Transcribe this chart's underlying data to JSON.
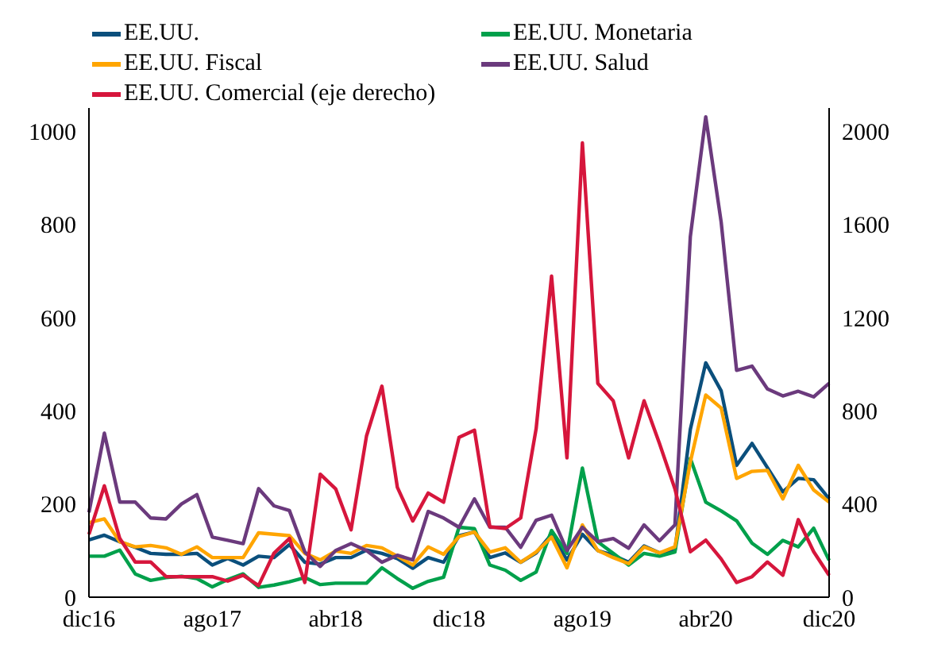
{
  "chart_data": {
    "type": "line",
    "categories": [
      "dic16",
      null,
      null,
      null,
      null,
      null,
      null,
      null,
      "ago17",
      null,
      null,
      null,
      null,
      null,
      null,
      null,
      "abr18",
      null,
      null,
      null,
      null,
      null,
      null,
      null,
      "dic18",
      null,
      null,
      null,
      null,
      null,
      null,
      null,
      "ago19",
      null,
      null,
      null,
      null,
      null,
      null,
      null,
      "abr20",
      null,
      null,
      null,
      null,
      null,
      null,
      null,
      "dic20"
    ],
    "series": [
      {
        "name": "EE.UU.",
        "color": "#0b4f7c",
        "values": [
          123,
          133,
          119,
          107,
          94,
          92,
          92,
          94,
          69,
          83,
          69,
          88,
          85,
          113,
          75,
          71,
          85,
          85,
          101,
          94,
          83,
          62,
          85,
          75,
          132,
          140,
          85,
          95,
          75,
          95,
          135,
          80,
          135,
          100,
          90,
          75,
          110,
          95,
          100,
          360,
          503,
          443,
          283,
          330,
          278,
          226,
          255,
          252,
          211
        ]
      },
      {
        "name": "EE.UU. Monetaria",
        "color": "#00a04b",
        "values": [
          88,
          88,
          101,
          50,
          36,
          42,
          45,
          40,
          22,
          38,
          50,
          21,
          26,
          33,
          42,
          27,
          30,
          30,
          30,
          63,
          40,
          19,
          34,
          43,
          150,
          147,
          69,
          58,
          36,
          54,
          143,
          94,
          277,
          119,
          94,
          69,
          94,
          88,
          97,
          298,
          204,
          185,
          164,
          116,
          92,
          122,
          108,
          148,
          79
        ]
      },
      {
        "name": "EE.UU. Fiscal",
        "color": "#ffa500",
        "values": [
          160,
          168,
          119,
          108,
          111,
          106,
          92,
          108,
          85,
          85,
          85,
          138,
          135,
          132,
          94,
          80,
          99,
          94,
          111,
          106,
          88,
          69,
          108,
          92,
          130,
          140,
          97,
          106,
          75,
          97,
          129,
          63,
          155,
          100,
          85,
          72,
          108,
          95,
          108,
          290,
          434,
          406,
          255,
          270,
          272,
          211,
          283,
          230,
          204
        ]
      },
      {
        "name": "EE.UU. Salud",
        "color": "#6b3a7d",
        "values": [
          182,
          352,
          204,
          204,
          170,
          168,
          200,
          220,
          129,
          122,
          115,
          233,
          196,
          186,
          97,
          66,
          100,
          115,
          100,
          75,
          90,
          80,
          184,
          170,
          150,
          211,
          150,
          150,
          107,
          165,
          176,
          100,
          150,
          119,
          126,
          105,
          155,
          121,
          155,
          774,
          1031,
          805,
          487,
          496,
          447,
          432,
          442,
          430,
          459
        ]
      },
      {
        "name": "EE.UU. Comercial (eje derecho)",
        "color": "#d6163c",
        "axis": "y2",
        "values": [
          270,
          478,
          252,
          151,
          151,
          88,
          88,
          88,
          88,
          69,
          94,
          50,
          189,
          252,
          63,
          528,
          465,
          289,
          692,
          906,
          472,
          327,
          447,
          408,
          686,
          717,
          302,
          295,
          340,
          723,
          1378,
          598,
          1950,
          918,
          843,
          598,
          843,
          660,
          465,
          195,
          245,
          164,
          63,
          88,
          151,
          94,
          333,
          195,
          94
        ]
      }
    ],
    "ylim": [
      0,
      1050
    ],
    "yticks": [
      0,
      200,
      400,
      600,
      800,
      1000
    ],
    "y2lim": [
      0,
      2100
    ],
    "y2ticks": [
      0,
      400,
      800,
      1200,
      1600,
      2000
    ],
    "legend": "top",
    "grid": false,
    "marker": "none",
    "line_style": "solid"
  }
}
